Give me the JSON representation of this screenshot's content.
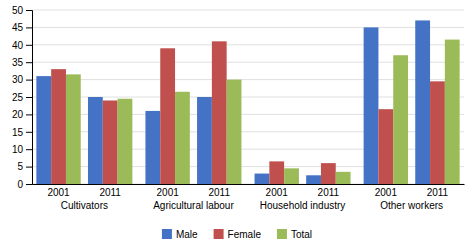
{
  "chart_data": {
    "type": "bar",
    "categories": [
      "Cultivators",
      "Agricultural labour",
      "Household industry",
      "Other workers"
    ],
    "x": [
      "2001",
      "2011"
    ],
    "series": [
      {
        "name": "Male",
        "color": "#4472C4",
        "values": [
          [
            31,
            25
          ],
          [
            21,
            25
          ],
          [
            3,
            2.5
          ],
          [
            45,
            47
          ]
        ]
      },
      {
        "name": "Female",
        "color": "#C0504D",
        "values": [
          [
            33,
            24
          ],
          [
            39,
            41
          ],
          [
            6.5,
            6
          ],
          [
            21.5,
            29.5
          ]
        ]
      },
      {
        "name": "Total",
        "color": "#9BBB59",
        "values": [
          [
            31.5,
            24.5
          ],
          [
            26.5,
            30
          ],
          [
            4.5,
            3.5
          ],
          [
            37,
            41.5
          ]
        ]
      }
    ],
    "ylim": [
      0,
      50
    ],
    "yticks": [
      0,
      5,
      10,
      15,
      20,
      25,
      30,
      35,
      40,
      45,
      50
    ],
    "grid": true,
    "legend": "bottom"
  }
}
